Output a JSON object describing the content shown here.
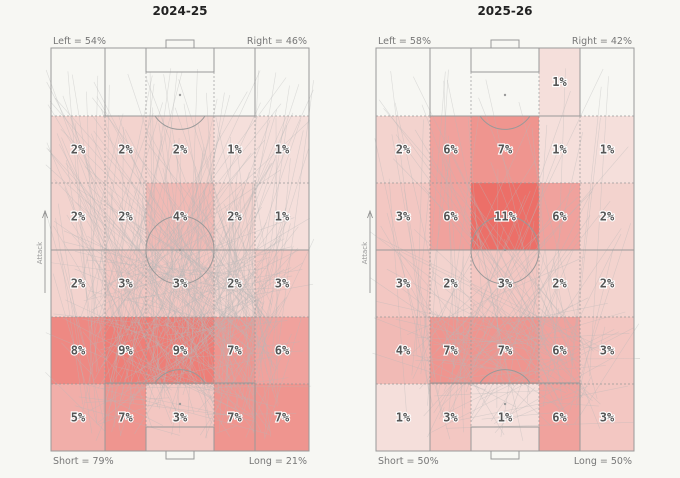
{
  "chart_data": [
    {
      "type": "heatmap",
      "title": "2024-25",
      "attack_label": "Attack",
      "corners": {
        "top_left": "Left = 54%",
        "top_right": "Right = 46%",
        "bottom_left": "Short = 79%",
        "bottom_right": "Long = 21%"
      },
      "columns": 5,
      "rows_top_to_bottom": 6,
      "values": [
        [
          null,
          null,
          null,
          null,
          null
        ],
        [
          2,
          2,
          2,
          1,
          1
        ],
        [
          2,
          2,
          4,
          2,
          1
        ],
        [
          2,
          3,
          3,
          2,
          3
        ],
        [
          8,
          9,
          9,
          7,
          6
        ],
        [
          5,
          7,
          3,
          7,
          7
        ]
      ],
      "unit": "%"
    },
    {
      "type": "heatmap",
      "title": "2025-26",
      "attack_label": "Attack",
      "corners": {
        "top_left": "Left = 58%",
        "top_right": "Right = 42%",
        "bottom_left": "Short = 50%",
        "bottom_right": "Long = 50%"
      },
      "columns": 5,
      "rows_top_to_bottom": 6,
      "values": [
        [
          null,
          null,
          null,
          1,
          null
        ],
        [
          2,
          6,
          7,
          1,
          1
        ],
        [
          3,
          6,
          11,
          6,
          2
        ],
        [
          3,
          2,
          3,
          2,
          2
        ],
        [
          4,
          7,
          7,
          6,
          3
        ],
        [
          1,
          3,
          1,
          6,
          3
        ]
      ],
      "unit": "%"
    }
  ],
  "colors": {
    "heat": "#e8413a",
    "line": "#999999",
    "pass": "#b9b9b9"
  }
}
